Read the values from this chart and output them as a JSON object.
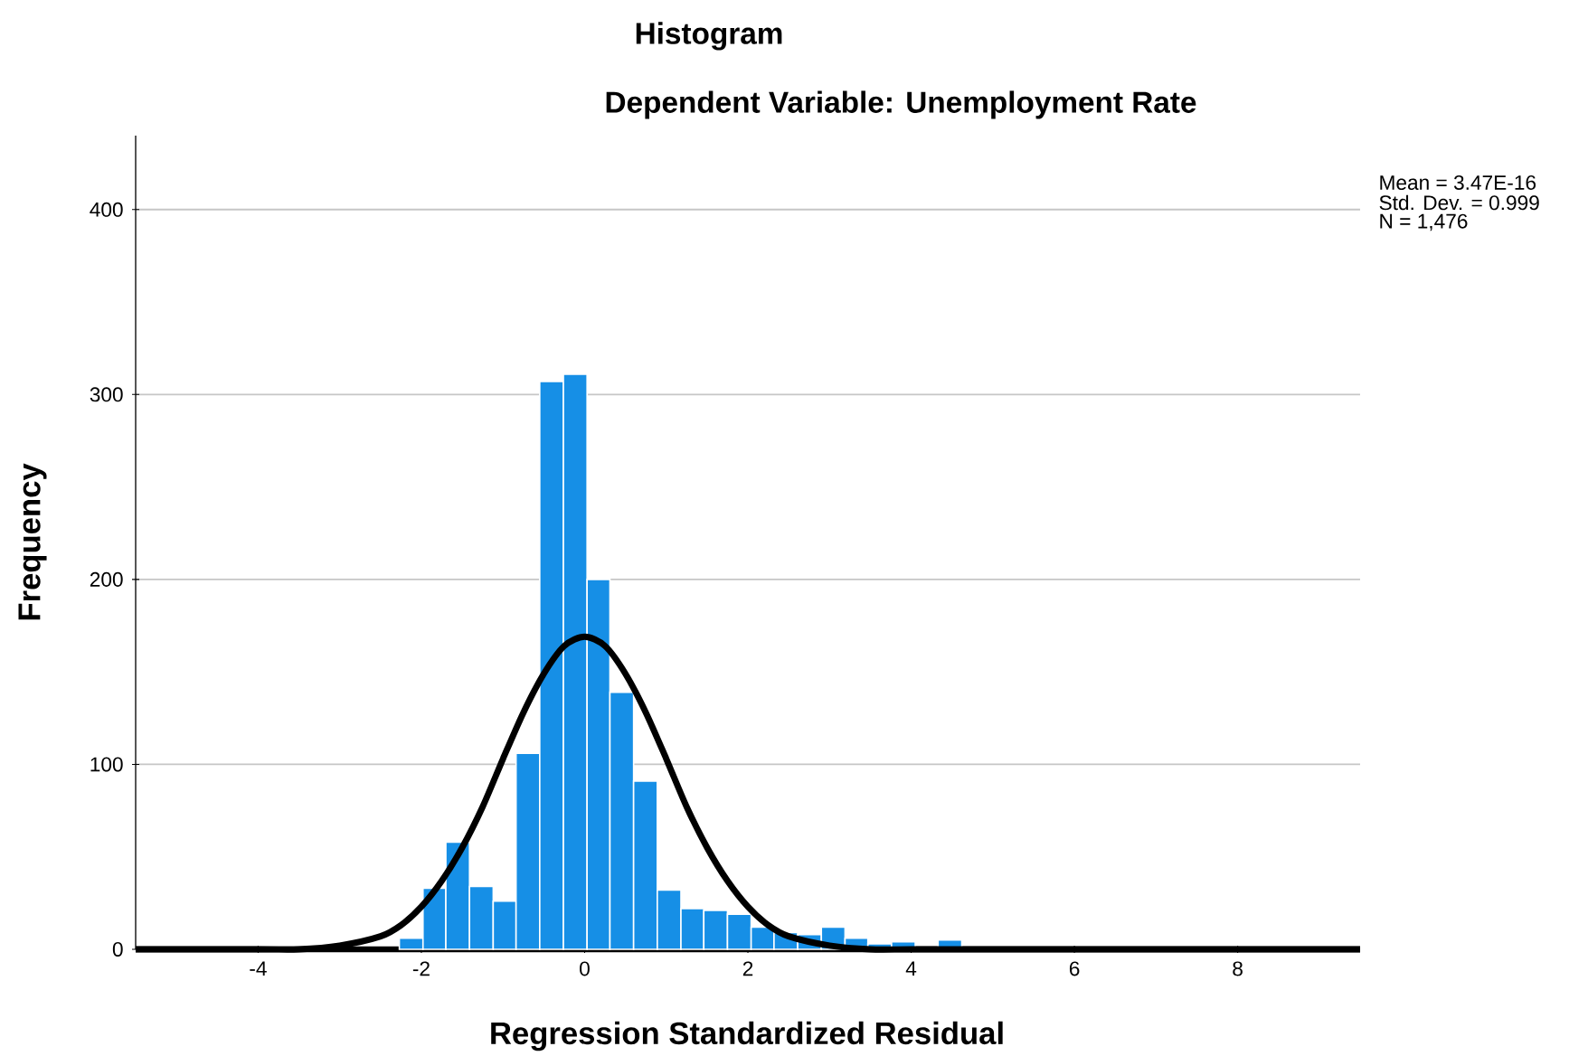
{
  "chart_data": {
    "type": "histogram",
    "title": "Histogram",
    "subtitle": "Dependent Variable: Unemployment Rate",
    "xlabel": "Regression Standardized Residual",
    "ylabel": "Frequency",
    "annotations": [
      "Mean = 3.47E-16",
      "Std. Dev. = 0.999",
      "N = 1,476"
    ],
    "series": [
      {
        "color": "#168fe6",
        "bins": [
          -2.27,
          -1.98,
          -1.7,
          -1.41,
          -1.12,
          -0.84,
          -0.55,
          -0.26,
          0.03,
          0.31,
          0.6,
          0.89,
          1.18,
          1.46,
          1.75,
          2.04,
          2.32,
          2.61,
          2.9,
          3.19,
          3.47,
          3.76,
          4.05,
          4.33,
          4.62,
          4.91,
          5.19
        ],
        "values": [
          6,
          33,
          58,
          34,
          26,
          106,
          307,
          311,
          200,
          139,
          91,
          32,
          22,
          21,
          19,
          12,
          9,
          8,
          12,
          6,
          3,
          4,
          1,
          5,
          1,
          1
        ]
      },
      {
        "type": "line",
        "color": "#000000",
        "x": [
          -5.5,
          -4,
          -3.5,
          -3,
          -2.5,
          -2.25,
          -2,
          -1.75,
          -1.5,
          -1.25,
          -1,
          -0.75,
          -0.5,
          -0.25,
          0,
          0.25,
          0.5,
          0.75,
          1,
          1.25,
          1.5,
          1.75,
          2,
          2.25,
          2.5,
          3,
          3.5,
          4,
          5,
          9.5
        ],
        "values": [
          0,
          0,
          0,
          2,
          7,
          13,
          23,
          37,
          55,
          77,
          103,
          128,
          149,
          164,
          169,
          164,
          149,
          128,
          103,
          77,
          55,
          37,
          23,
          13,
          7,
          2,
          0,
          0,
          0,
          0
        ]
      }
    ],
    "xlim": [
      -5.5,
      9.5
    ],
    "ylim": [
      0,
      440
    ],
    "xticks": [
      -4,
      -2,
      0,
      2,
      4,
      6,
      8
    ],
    "yticks": [
      0,
      100,
      200,
      300,
      400
    ],
    "grid": "y"
  }
}
